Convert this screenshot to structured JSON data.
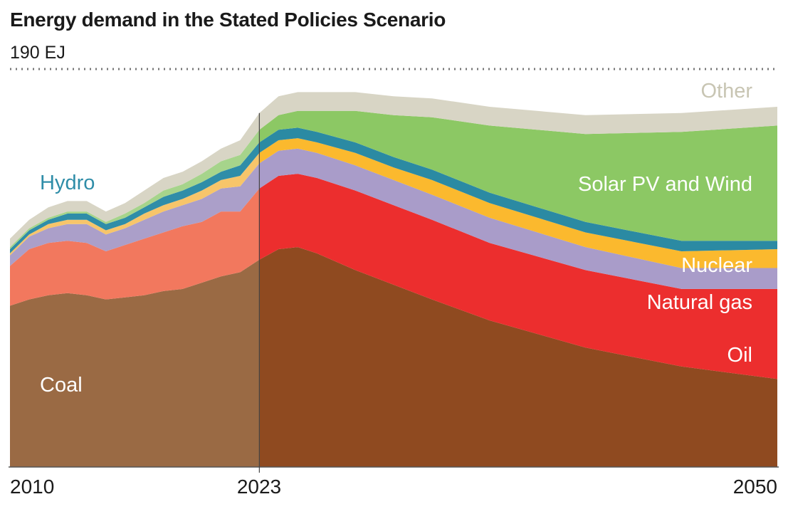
{
  "chart_data": {
    "type": "area",
    "title": "Energy demand in the Stated Policies Scenario",
    "ymax_label": "190 EJ",
    "ylim": [
      0,
      190
    ],
    "xlim": [
      2010,
      2050
    ],
    "x_tick_labels": [
      "2010",
      "2023",
      "2050"
    ],
    "x": [
      2010,
      2011,
      2012,
      2013,
      2014,
      2015,
      2016,
      2017,
      2018,
      2019,
      2020,
      2021,
      2022,
      2023,
      2024,
      2025,
      2026,
      2028,
      2030,
      2032,
      2035,
      2040,
      2045,
      2050
    ],
    "historical_until": 2023,
    "series": [
      {
        "name": "Coal",
        "color": "#9a6a44",
        "projection_color": "#8f4a20",
        "values": [
          77,
          80,
          82,
          83,
          82,
          80,
          81,
          82,
          84,
          85,
          88,
          91,
          93,
          99,
          104,
          105,
          102,
          94,
          87,
          80,
          70,
          57,
          48,
          42
        ]
      },
      {
        "name": "Oil",
        "color": "#f2785e",
        "projection_color": "#ec2e2e",
        "values": [
          19,
          24,
          25,
          25,
          25,
          23,
          25,
          27,
          28,
          30,
          29,
          31,
          29,
          34,
          35,
          35,
          36,
          38,
          38,
          38,
          37,
          37,
          37,
          43
        ]
      },
      {
        "name": "Natural gas",
        "color": "#ab9fc9",
        "projection_color": "#a99cc9",
        "values": [
          5,
          6,
          7,
          8,
          9,
          8,
          8,
          9,
          10,
          10,
          11,
          11,
          12,
          12,
          12,
          12,
          12,
          12,
          12,
          12,
          12,
          11,
          10,
          10
        ]
      },
      {
        "name": "Nuclear",
        "color": "#f7c56a",
        "projection_color": "#fbb92e",
        "values": [
          1,
          1,
          2,
          2,
          2,
          2,
          2,
          3,
          3,
          3,
          4,
          4,
          5,
          5,
          5,
          5,
          5,
          6,
          6,
          7,
          7,
          7,
          8,
          9
        ]
      },
      {
        "name": "Hydro",
        "color": "#2f8da8",
        "projection_color": "#2b8aa3",
        "values": [
          2,
          2,
          2,
          3,
          3,
          3,
          3,
          3,
          4,
          4,
          4,
          4,
          5,
          5,
          5,
          5,
          5,
          5,
          5,
          5,
          5,
          5,
          5,
          4
        ]
      },
      {
        "name": "Solar PV and Wind",
        "color": "#a6d48b",
        "projection_color": "#8cc864",
        "values": [
          1,
          1,
          1,
          1,
          1,
          1,
          2,
          2,
          3,
          3,
          4,
          5,
          5,
          6,
          7,
          8,
          10,
          15,
          20,
          25,
          32,
          42,
          52,
          55
        ]
      },
      {
        "name": "Other",
        "color": "#d8d5c5",
        "projection_color": "#d8d5c5",
        "values": [
          4,
          4,
          5,
          5,
          5,
          5,
          5,
          6,
          6,
          6,
          6,
          6,
          7,
          8,
          9,
          9,
          9,
          9,
          9,
          9,
          9,
          9,
          9,
          9
        ]
      }
    ],
    "labels": {
      "coal": "Coal",
      "hydro": "Hydro",
      "other": "Other",
      "solar_wind": "Solar PV and Wind",
      "nuclear": "Nuclear",
      "natural_gas": "Natural gas",
      "oil": "Oil"
    },
    "label_colors": {
      "coal": "#ffffff",
      "hydro": "#2f8da8",
      "other": "#c8c5b3",
      "solar_wind": "#ffffff",
      "nuclear": "#ffffff",
      "natural_gas": "#ffffff",
      "oil": "#ffffff"
    },
    "grid": false,
    "legend": "inline"
  }
}
